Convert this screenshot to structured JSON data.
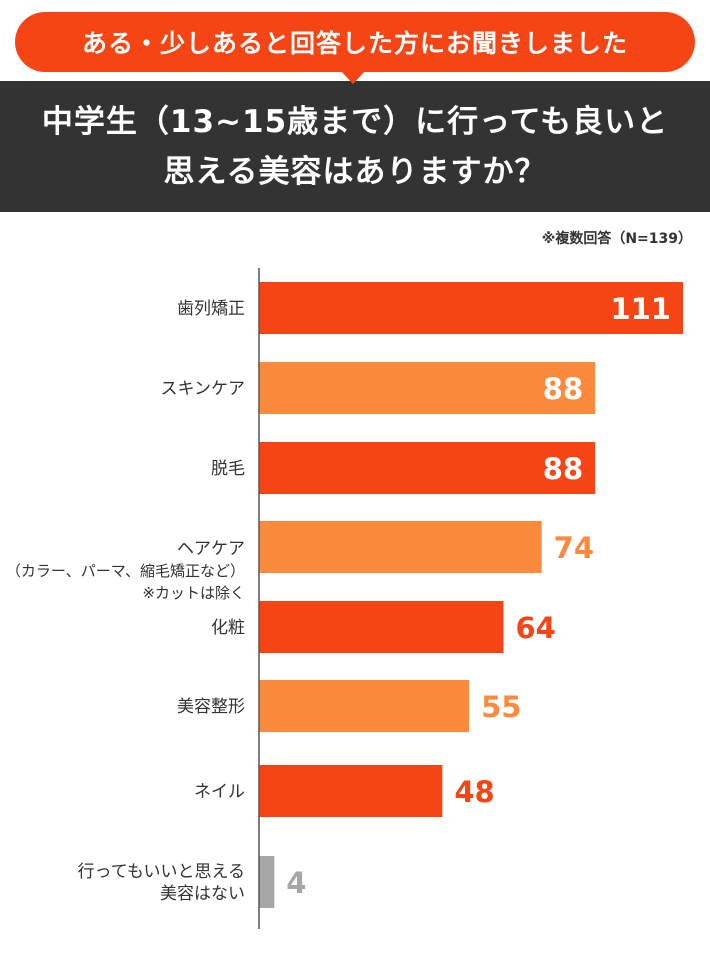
{
  "header": {
    "bubble_text": "ある・少しあると回答した方にお聞きしました",
    "title_line1": "中学生（13~15歳まで）に行っても良いと",
    "title_line2": "思える美容はありますか？"
  },
  "note": "※複数回答（N=139）",
  "colors": {
    "dark_orange": "#F54515",
    "light_orange": "#FC8A3C",
    "gray": "#A6A6A6",
    "header_bg": "#333333"
  },
  "chart_data": {
    "type": "bar",
    "orientation": "horizontal",
    "categories": [
      [
        "歯列矯正"
      ],
      [
        "スキンケア"
      ],
      [
        "脱毛"
      ],
      [
        "ヘアケア",
        "（カラー、パーマ、縮毛矯正など）",
        "※カットは除く"
      ],
      [
        "化粧"
      ],
      [
        "美容整形"
      ],
      [
        "ネイル"
      ],
      [
        "行ってもいいと思える",
        "美容はない"
      ]
    ],
    "values": [
      111,
      88,
      88,
      74,
      64,
      55,
      48,
      4
    ],
    "bar_colors": [
      "#F54515",
      "#FC8A3C",
      "#F54515",
      "#FC8A3C",
      "#F54515",
      "#FC8A3C",
      "#F54515",
      "#A6A6A6"
    ],
    "xlim": [
      0,
      111
    ],
    "grid": false,
    "title": "",
    "xlabel": "",
    "ylabel": ""
  }
}
